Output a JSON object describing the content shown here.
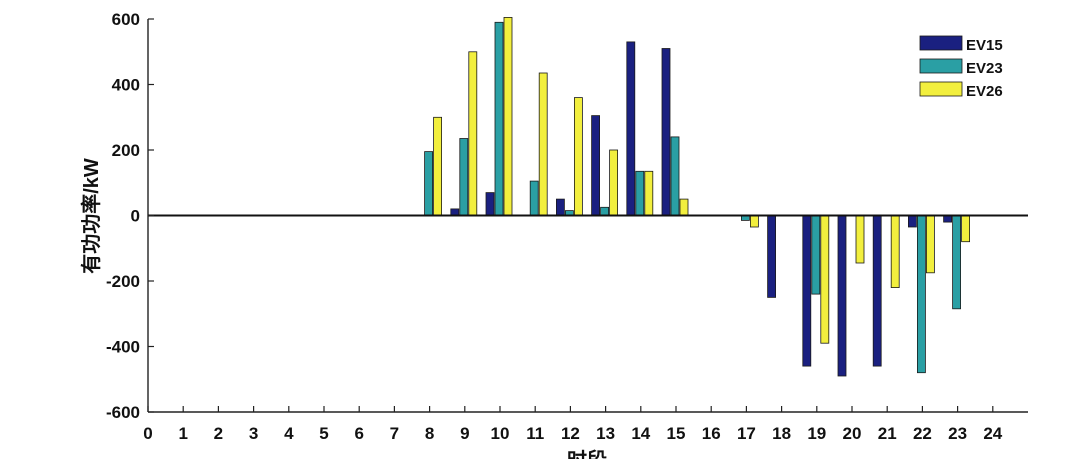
{
  "chart_data": {
    "type": "bar",
    "xlabel": "时段",
    "ylabel": "有功功率/kW",
    "ylim": [
      -600,
      600
    ],
    "yticks": [
      600,
      400,
      200,
      0,
      -200,
      -400,
      -600
    ],
    "xlim": [
      0,
      25
    ],
    "xticks": [
      "0",
      "1",
      "2",
      "3",
      "4",
      "5",
      "6",
      "7",
      "8",
      "9",
      "10",
      "11",
      "12",
      "13",
      "14",
      "15",
      "16",
      "17",
      "18",
      "19",
      "20",
      "21",
      "22",
      "23",
      "24"
    ],
    "grid": false,
    "legend_position": "top-right",
    "categories": [
      8,
      9,
      10,
      11,
      12,
      13,
      14,
      15,
      16,
      17,
      18,
      19,
      20,
      21,
      22,
      23
    ],
    "series": [
      {
        "name": "EV15",
        "color": "#1a2080",
        "values": [
          0,
          20,
          70,
          0,
          50,
          305,
          530,
          510,
          0,
          0,
          -250,
          -460,
          -490,
          -460,
          -35,
          -20
        ]
      },
      {
        "name": "EV23",
        "color": "#2a9fa4",
        "values": [
          195,
          235,
          590,
          105,
          15,
          25,
          135,
          240,
          0,
          -15,
          0,
          -240,
          0,
          0,
          -480,
          -285
        ]
      },
      {
        "name": "EV26",
        "color": "#f2ef3e",
        "values": [
          300,
          500,
          605,
          435,
          360,
          200,
          135,
          50,
          0,
          -35,
          0,
          -390,
          -145,
          -220,
          -175,
          -80
        ]
      }
    ]
  }
}
